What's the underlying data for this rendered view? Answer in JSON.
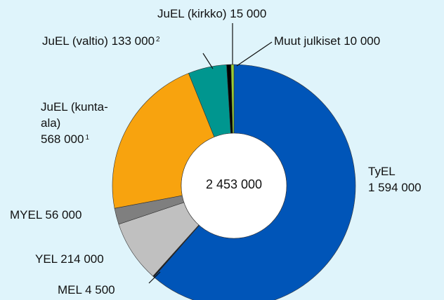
{
  "chart_data": {
    "type": "donut",
    "center_label": "2 453 000",
    "categories": [
      "TyEL",
      "MEL",
      "YEL",
      "MYEL",
      "JuEL (kunta-ala)",
      "JuEL (valtio)",
      "JuEL (kirkko)",
      "Muut julkiset"
    ],
    "values": [
      1594000,
      4500,
      214000,
      56000,
      568000,
      133000,
      15000,
      10000
    ],
    "value_labels": [
      "1 594 000",
      "4 500",
      "214 000",
      "56 000",
      "568 000",
      "133 000",
      "15 000",
      "10 000"
    ],
    "notes": [
      null,
      null,
      null,
      null,
      "1",
      "2",
      null,
      null
    ],
    "colors": [
      "#0055b8",
      "#1a1a1a",
      "#c0c0c0",
      "#7f7f7f",
      "#f8a30e",
      "#00968f",
      "#000000",
      "#99cc33"
    ]
  }
}
